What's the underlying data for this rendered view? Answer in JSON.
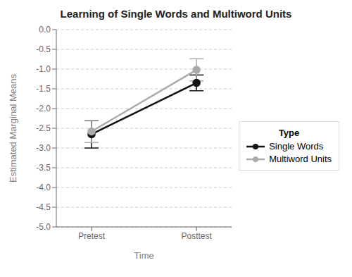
{
  "chart_data": {
    "type": "line",
    "title": "Learning of Single Words and Multiword Units",
    "xlabel": "Time",
    "ylabel": "Estimated Marginal Means",
    "categories": [
      "Pretest",
      "Posttest"
    ],
    "series": [
      {
        "name": "Single Words",
        "color": "#111111",
        "marker": "circle",
        "values": [
          -2.65,
          -1.35
        ],
        "errors": [
          0.35,
          0.2
        ]
      },
      {
        "name": "Multiword Units",
        "color": "#aaaaaa",
        "marker": "circle",
        "values": [
          -2.58,
          -1.02
        ],
        "errors": [
          0.28,
          0.28
        ]
      }
    ],
    "ylim": [
      -5.0,
      0.0
    ],
    "yticks": [
      {
        "value": 0,
        "label": "0.0"
      },
      -0.5,
      {
        "value": -1,
        "label": "-1.0"
      },
      -1.5,
      {
        "value": -2,
        "label": "-2.0"
      },
      -2.5,
      {
        "value": -3,
        "label": "-3.0"
      },
      -3.5,
      {
        "value": -4,
        "label": "-4.0"
      },
      -4.5,
      {
        "value": -5,
        "label": "-5.0"
      }
    ],
    "grid": true,
    "legend": "right",
    "legend_title": "Type"
  }
}
